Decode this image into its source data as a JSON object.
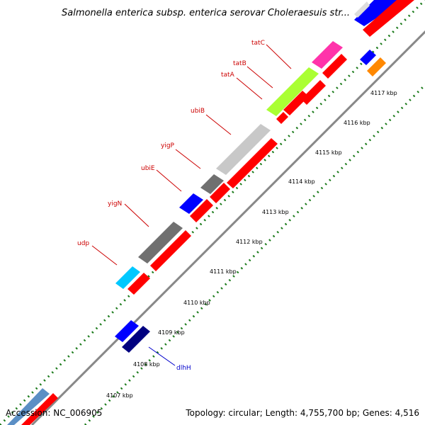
{
  "title": "Salmonella enterica subsp. enterica serovar Choleraesuis str...",
  "footer": {
    "accession": "Accession: NC_006905",
    "summary": "Topology: circular; Length: 4,755,700 bp; Genes: 4,516"
  },
  "colors": {
    "backbone": "#888888",
    "dots": "#1a7a1a",
    "label_forward": "#cc0000",
    "label_reverse": "#0000cc",
    "red": "#ff0000",
    "blue": "#0000ff",
    "navy": "#000080",
    "cyan": "#00c8ff",
    "gray": "#707070",
    "lightgray": "#c8c8c8",
    "lime": "#aaff33",
    "magenta": "#ff33aa",
    "orange": "#ff8800",
    "steelblue": "#5b8fc5"
  },
  "ticks": [
    "4107 kbp",
    "4108 kbp",
    "4109 kbp",
    "4110 kbp",
    "4111 kbp",
    "4112 kbp",
    "4113 kbp",
    "4114 kbp",
    "4115 kbp",
    "4116 kbp",
    "4117 kbp"
  ],
  "gene_labels": [
    "udp",
    "yigN",
    "ubiE",
    "yigP",
    "ubiB",
    "tatA",
    "tatB",
    "tatC",
    "dlhH"
  ]
}
